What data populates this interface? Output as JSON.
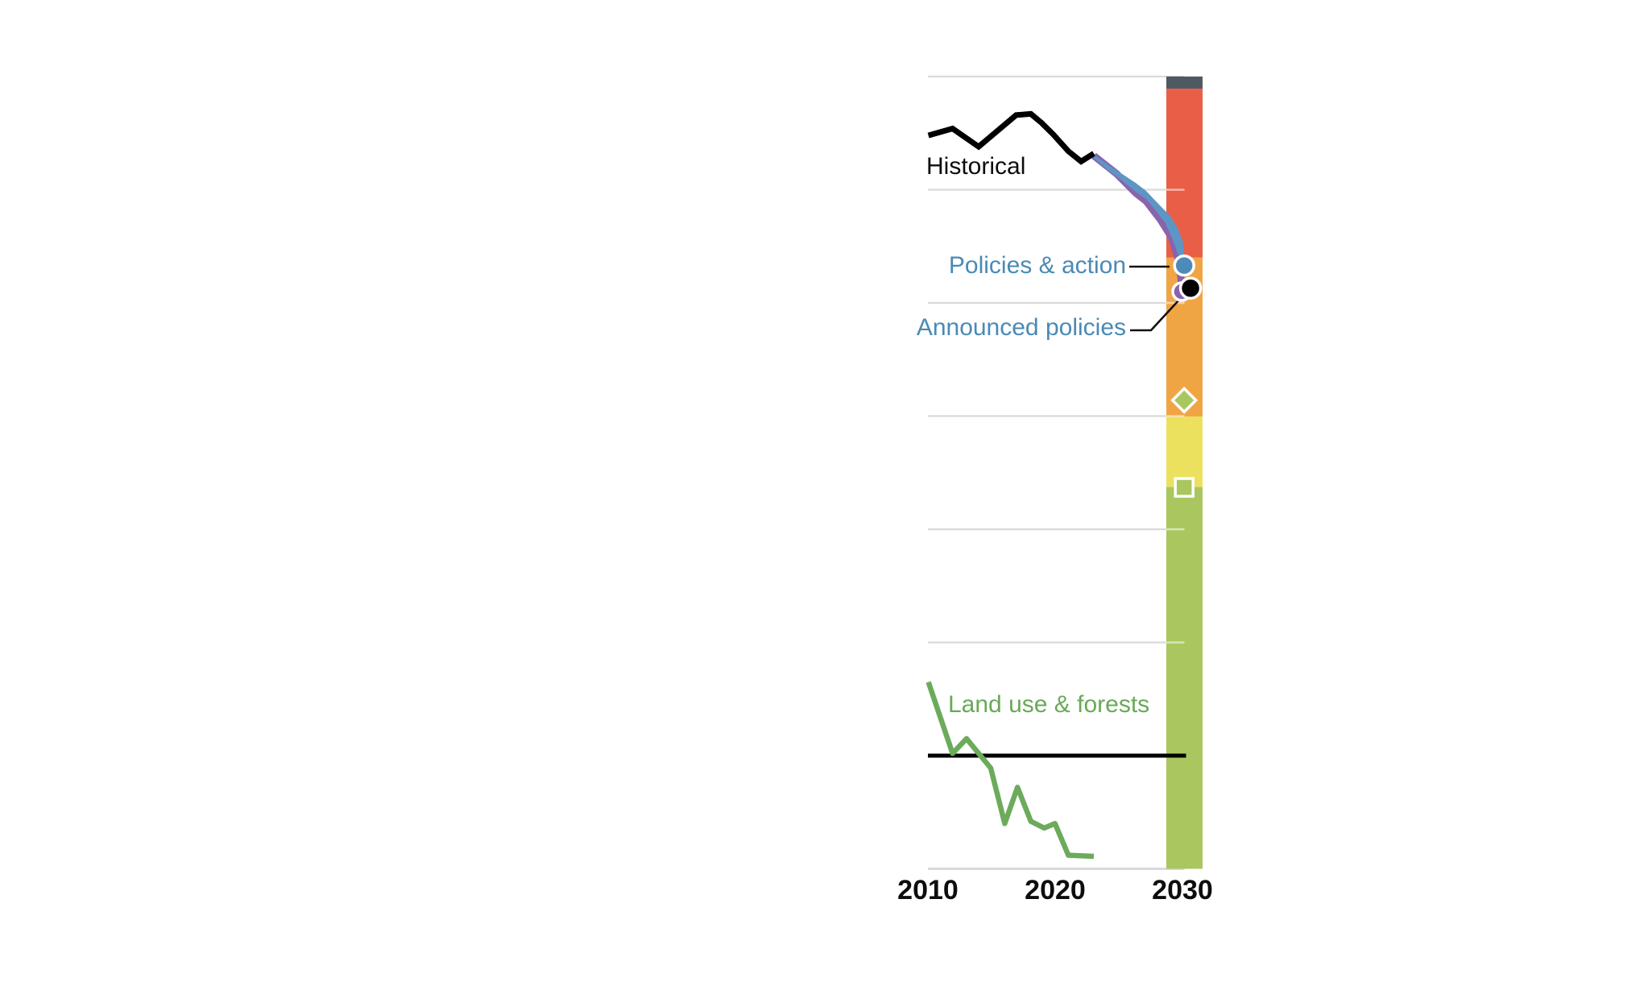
{
  "labels": {
    "historical": "Historical",
    "policies_action": "Policies & action",
    "announced_policies": "Announced policies",
    "land_use": "Land use & forests"
  },
  "axis": {
    "x_ticks": [
      "2010",
      "2020",
      "2030"
    ]
  },
  "colors": {
    "historical_line": "#000000",
    "policies_band": "#5d96c5",
    "policies_marker": "#4c8bb9",
    "announced_line": "#8a63ad",
    "announced_marker": "#8a63ad",
    "black_marker": "#000000",
    "land_use_line": "#6cab5b",
    "label_blue": "#4a8ab5",
    "label_green": "#68a957",
    "gridline": "#d9d9d9",
    "zero_line": "#000000",
    "bar_dark_gray": "#4e5a63",
    "bar_red": "#e95e46",
    "bar_orange": "#f0a544",
    "bar_yellow": "#ece15e",
    "bar_green": "#a9c75e"
  },
  "chart_data": {
    "type": "line",
    "title": "",
    "xlabel": "",
    "ylabel": "",
    "x_range": [
      2010,
      2030.6
    ],
    "x_ticks": [
      2010,
      2020,
      2030
    ],
    "y_note": "no numeric y-axis labels visible; values expressed in gridline units, zero at the thick black line",
    "y_range": [
      -1,
      6
    ],
    "gridlines": {
      "values": [
        6,
        5,
        4,
        3,
        2,
        1,
        -1
      ],
      "bar_overlay_values": [
        5,
        4,
        3,
        2,
        1
      ],
      "zero_line_value": 0
    },
    "series": [
      {
        "name": "Historical",
        "type": "line",
        "color": "#000000",
        "points": [
          [
            2010.0,
            5.48
          ],
          [
            2011.9,
            5.54
          ],
          [
            2013.95,
            5.38
          ],
          [
            2016.9,
            5.66
          ],
          [
            2018.05,
            5.67
          ],
          [
            2018.9,
            5.59
          ],
          [
            2019.8,
            5.49
          ],
          [
            2021.0,
            5.34
          ],
          [
            2022.0,
            5.25
          ],
          [
            2023.0,
            5.32
          ]
        ]
      },
      {
        "name": "Policies & action",
        "type": "band",
        "color": "#5d96c5",
        "upper": [
          [
            2023.0,
            5.31
          ],
          [
            2024.4,
            5.2
          ],
          [
            2026.3,
            5.06
          ],
          [
            2027.1,
            4.99
          ],
          [
            2028.2,
            4.86
          ],
          [
            2029.0,
            4.77
          ],
          [
            2029.6,
            4.66
          ],
          [
            2030.0,
            4.54
          ],
          [
            2030.1,
            4.41
          ]
        ],
        "lower": [
          [
            2030.1,
            4.25
          ],
          [
            2029.7,
            4.4
          ],
          [
            2029.2,
            4.56
          ],
          [
            2028.6,
            4.71
          ],
          [
            2027.9,
            4.81
          ],
          [
            2027.1,
            4.92
          ],
          [
            2026.3,
            4.98
          ],
          [
            2025.0,
            5.1
          ],
          [
            2024.1,
            5.17
          ],
          [
            2023.0,
            5.28
          ]
        ]
      },
      {
        "name": "Announced policies",
        "type": "line",
        "color": "#8a63ad",
        "stroke_width": 9,
        "points": [
          [
            2023.0,
            5.3
          ],
          [
            2024.8,
            5.14
          ],
          [
            2026.3,
            4.97
          ],
          [
            2027.1,
            4.9
          ],
          [
            2028.2,
            4.74
          ],
          [
            2029.1,
            4.58
          ],
          [
            2029.6,
            4.4
          ],
          [
            2029.85,
            4.22
          ],
          [
            2029.9,
            4.11
          ]
        ]
      },
      {
        "name": "Land use & forests",
        "type": "line",
        "color": "#6cab5b",
        "points": [
          [
            2010.0,
            0.65
          ],
          [
            2011.9,
            0.02
          ],
          [
            2013.0,
            0.15
          ],
          [
            2014.9,
            -0.11
          ],
          [
            2016.0,
            -0.6
          ],
          [
            2017.0,
            -0.28
          ],
          [
            2018.05,
            -0.58
          ],
          [
            2019.1,
            -0.64
          ],
          [
            2019.95,
            -0.6
          ],
          [
            2021.0,
            -0.88
          ],
          [
            2023.0,
            -0.89
          ]
        ]
      }
    ],
    "markers": [
      {
        "name": "announced-policies-2030",
        "shape": "circle",
        "year": 2029.9,
        "value": 4.1,
        "r": 11,
        "color": "#8a63ad"
      },
      {
        "name": "black-dot-2030",
        "shape": "circle",
        "year": 2030.6,
        "value": 4.13,
        "r": 12.5,
        "color": "#000000"
      },
      {
        "name": "policies-action-2030",
        "shape": "circle",
        "year": 2030.1,
        "value": 4.33,
        "r": 12,
        "color": "#4c8bb9"
      },
      {
        "name": "green-diamond-2030",
        "shape": "diamond",
        "year": 2030.1,
        "value": 3.14,
        "size": 20.5,
        "color": "#a9c75e"
      },
      {
        "name": "white-square-2030",
        "shape": "square",
        "year": 2030.1,
        "value": 2.37,
        "size": 22,
        "color": "#a9c75e"
      }
    ],
    "rating_bar_2030": {
      "segments": [
        {
          "label": "dark-gray",
          "color": "#4e5a63",
          "from": 6.0,
          "to": 5.893
        },
        {
          "label": "red",
          "color": "#e95e46",
          "from": 5.893,
          "to": 4.402
        },
        {
          "label": "orange",
          "color": "#f0a544",
          "from": 4.402,
          "to": 2.996
        },
        {
          "label": "yellow",
          "color": "#ece15e",
          "from": 2.996,
          "to": 2.373
        },
        {
          "label": "green",
          "color": "#a9c75e",
          "from": 2.373,
          "to": -1.0
        }
      ]
    },
    "zero_line": {
      "value": 0,
      "color": "#000000"
    }
  }
}
